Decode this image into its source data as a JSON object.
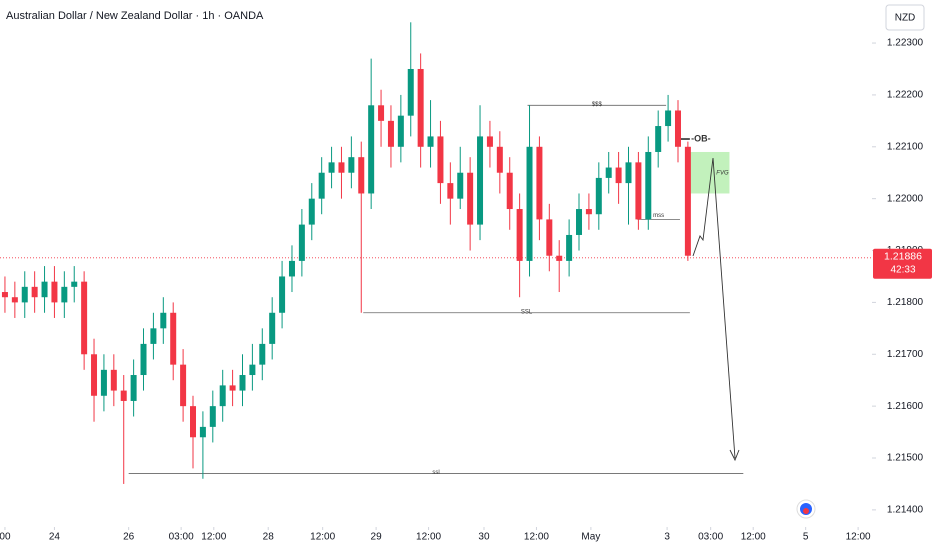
{
  "chart_data": {
    "type": "candlestick",
    "title": "Australian Dollar / New Zealand Dollar · 1h · OANDA",
    "currency": "NZD",
    "up_color": "#089981",
    "down_color": "#f23645",
    "open": [
      1.2182,
      1.2181,
      1.218,
      1.2183,
      1.2181,
      1.2184,
      1.218,
      1.2183,
      1.2184,
      1.217,
      1.2162,
      1.2167,
      1.2163,
      1.2161,
      1.2166,
      1.2172,
      1.2175,
      1.2178,
      1.2168,
      1.216,
      1.2154,
      1.2156,
      1.216,
      1.2164,
      1.2163,
      1.2166,
      1.2168,
      1.2172,
      1.2178,
      1.2185,
      1.2188,
      1.2195,
      1.22,
      1.2205,
      1.2207,
      1.2205,
      1.2208,
      1.2201,
      1.2218,
      1.2215,
      1.221,
      1.2216,
      1.2225,
      1.221,
      1.2212,
      1.2203,
      1.22,
      1.2205,
      1.2195,
      1.2212,
      1.221,
      1.2205,
      1.2198,
      1.2188,
      1.221,
      1.2196,
      1.2189,
      1.2188,
      1.2193,
      1.2198,
      1.2197,
      1.2204,
      1.2206,
      1.2203,
      1.2207,
      1.2196,
      1.2209,
      1.2214,
      1.2217,
      1.221
    ],
    "high": [
      1.2185,
      1.2184,
      1.2186,
      1.2186,
      1.2187,
      1.2187,
      1.2186,
      1.2187,
      1.2186,
      1.2173,
      1.217,
      1.217,
      1.2166,
      1.2169,
      1.2175,
      1.2178,
      1.2181,
      1.218,
      1.2171,
      1.2162,
      1.2159,
      1.2163,
      1.2167,
      1.2167,
      1.217,
      1.2172,
      1.2175,
      1.2181,
      1.2188,
      1.2191,
      1.2198,
      1.2203,
      1.2208,
      1.221,
      1.221,
      1.2212,
      1.2211,
      1.2227,
      1.2221,
      1.2218,
      1.222,
      1.2234,
      1.2228,
      1.2219,
      1.2215,
      1.2207,
      1.221,
      1.2208,
      1.2218,
      1.2215,
      1.2213,
      1.2208,
      1.2201,
      1.2218,
      1.2212,
      1.2199,
      1.2192,
      1.2196,
      1.2201,
      1.2201,
      1.2207,
      1.2209,
      1.2209,
      1.221,
      1.2209,
      1.2212,
      1.2217,
      1.222,
      1.2219,
      1.2211
    ],
    "low": [
      1.2178,
      1.2177,
      1.2177,
      1.2178,
      1.2178,
      1.2177,
      1.2177,
      1.218,
      1.2167,
      1.2157,
      1.2159,
      1.216,
      1.2145,
      1.2158,
      1.2163,
      1.2169,
      1.2172,
      1.2165,
      1.2157,
      1.2148,
      1.2146,
      1.2153,
      1.2157,
      1.216,
      1.216,
      1.2163,
      1.2165,
      1.2169,
      1.2175,
      1.2182,
      1.2185,
      1.2192,
      1.2197,
      1.2202,
      1.22,
      1.2202,
      1.2178,
      1.2198,
      1.221,
      1.2206,
      1.2207,
      1.2212,
      1.2206,
      1.2206,
      1.2199,
      1.2195,
      1.2198,
      1.219,
      1.2192,
      1.2206,
      1.2201,
      1.2194,
      1.2181,
      1.2185,
      1.2192,
      1.2186,
      1.2182,
      1.2185,
      1.219,
      1.2194,
      1.2194,
      1.2201,
      1.2199,
      1.2195,
      1.2194,
      1.2194,
      1.2206,
      1.2211,
      1.2207,
      1.2188
    ],
    "close": [
      1.2181,
      1.218,
      1.2183,
      1.2181,
      1.2184,
      1.218,
      1.2183,
      1.2184,
      1.217,
      1.2162,
      1.2167,
      1.2163,
      1.2161,
      1.2166,
      1.2172,
      1.2175,
      1.2178,
      1.2168,
      1.216,
      1.2154,
      1.2156,
      1.216,
      1.2164,
      1.2163,
      1.2166,
      1.2168,
      1.2172,
      1.2178,
      1.2185,
      1.2188,
      1.2195,
      1.22,
      1.2205,
      1.2207,
      1.2205,
      1.2208,
      1.2201,
      1.2218,
      1.2215,
      1.221,
      1.2216,
      1.2225,
      1.221,
      1.2212,
      1.2203,
      1.22,
      1.2205,
      1.2195,
      1.2212,
      1.221,
      1.2205,
      1.2198,
      1.2188,
      1.221,
      1.2196,
      1.2189,
      1.2188,
      1.2193,
      1.2198,
      1.2197,
      1.2204,
      1.2206,
      1.2203,
      1.2207,
      1.2196,
      1.2209,
      1.2214,
      1.2217,
      1.221,
      1.2189
    ],
    "xlim": [
      -0.5,
      87.4
    ],
    "xticks": [
      {
        "value": 0,
        "label": "00"
      },
      {
        "value": 5,
        "label": "24"
      },
      {
        "value": 12.5,
        "label": "26"
      },
      {
        "value": 17.8,
        "label": "03:00"
      },
      {
        "value": 21.1,
        "label": "12:00"
      },
      {
        "value": 26.6,
        "label": "28"
      },
      {
        "value": 32.1,
        "label": "12:00"
      },
      {
        "value": 37.5,
        "label": "29"
      },
      {
        "value": 42.8,
        "label": "12:00"
      },
      {
        "value": 48.4,
        "label": "30"
      },
      {
        "value": 53.7,
        "label": "12:00"
      },
      {
        "value": 59.2,
        "label": "May"
      },
      {
        "value": 66.9,
        "label": "3"
      },
      {
        "value": 71.3,
        "label": "03:00"
      },
      {
        "value": 75.6,
        "label": "12:00"
      },
      {
        "value": 80.9,
        "label": "5"
      },
      {
        "value": 86.2,
        "label": "12:00"
      }
    ],
    "ylim": [
      1.21367,
      1.22383
    ],
    "yticks": [
      {
        "value": 1.223,
        "label": "1.22300"
      },
      {
        "value": 1.222,
        "label": "1.22200"
      },
      {
        "value": 1.221,
        "label": "1.22100"
      },
      {
        "value": 1.22,
        "label": "1.22000"
      },
      {
        "value": 1.219,
        "label": "1.21900"
      },
      {
        "value": 1.218,
        "label": "1.21800"
      },
      {
        "value": 1.217,
        "label": "1.21700"
      },
      {
        "value": 1.216,
        "label": "1.21600"
      },
      {
        "value": 1.215,
        "label": "1.21500"
      },
      {
        "value": 1.214,
        "label": "1.21400"
      }
    ],
    "last_price": {
      "value": 1.21886,
      "label": "1.21886"
    },
    "countdown": "42:33",
    "levels": [
      {
        "label": "$$$",
        "price": 1.2218,
        "from": 52.8,
        "to": 66.8
      },
      {
        "label": "SSL",
        "price": 1.2178,
        "from": 36.2,
        "to": 69.2
      },
      {
        "label": "ssl",
        "price": 1.2147,
        "from": 12.5,
        "to": 74.6
      },
      {
        "label": "mss",
        "price": 1.2196,
        "from": 63.9,
        "to": 68.2
      },
      {
        "label": "-OB-",
        "price": 1.22115,
        "from": 68.0,
        "to": 69.2
      }
    ],
    "zone": {
      "label": "FVG",
      "from": 68.8,
      "to": 73.2,
      "low": 1.2201,
      "high": 1.2209,
      "color": "#b7efb0"
    }
  }
}
